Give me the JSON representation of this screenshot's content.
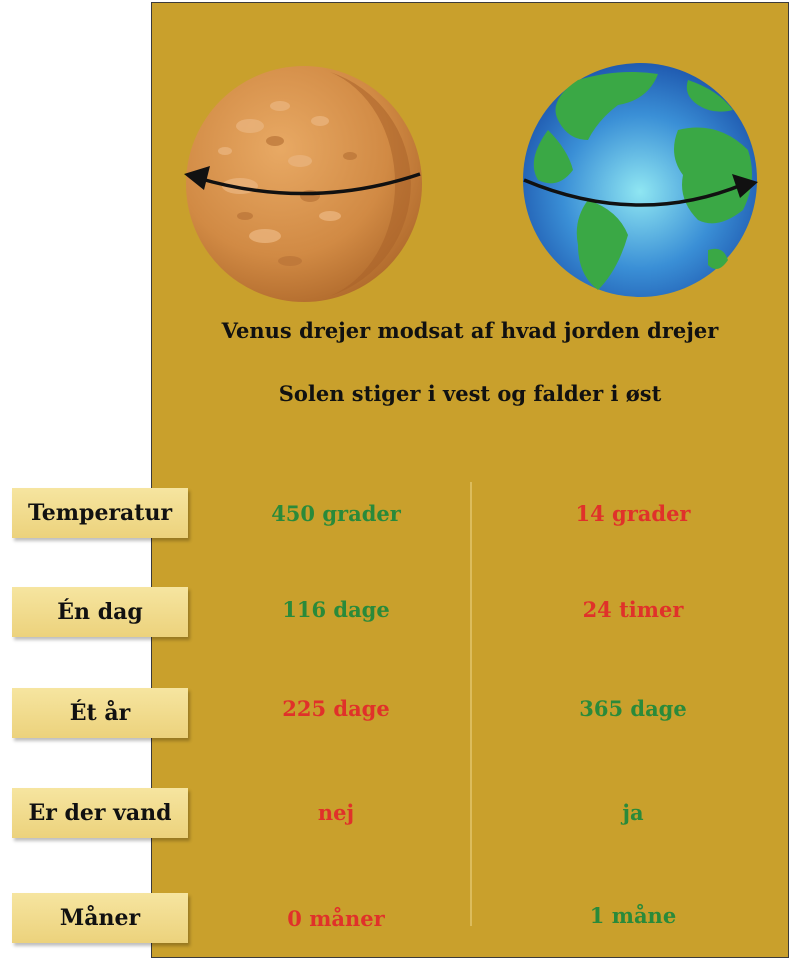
{
  "colors": {
    "panel": "#c9a02c",
    "green": "#2a8a3a",
    "red": "#e0312a",
    "label_bg": "#f1da8a"
  },
  "headline": {
    "line1": "Venus drejer  modsat af hvad jorden drejer",
    "line2": "Solen stiger i vest og falder i øst"
  },
  "rows": [
    {
      "label": "Temperatur",
      "venus": "450 grader",
      "venus_color": "green",
      "earth": "14 grader",
      "earth_color": "red"
    },
    {
      "label": "Én dag",
      "venus": "116 dage",
      "venus_color": "green",
      "earth": "24 timer",
      "earth_color": "red"
    },
    {
      "label": "Ét år",
      "venus": "225 dage",
      "venus_color": "red",
      "earth": "365 dage",
      "earth_color": "green"
    },
    {
      "label": "Er der vand",
      "venus": "nej",
      "venus_color": "red",
      "earth": "ja",
      "earth_color": "green"
    },
    {
      "label": "Måner",
      "venus": "0 måner",
      "venus_color": "red",
      "earth": "1 måne",
      "earth_color": "green"
    }
  ],
  "icons": {
    "venus": "venus-planet-icon",
    "earth": "earth-planet-icon",
    "arrow": "rotation-arrow-icon"
  }
}
